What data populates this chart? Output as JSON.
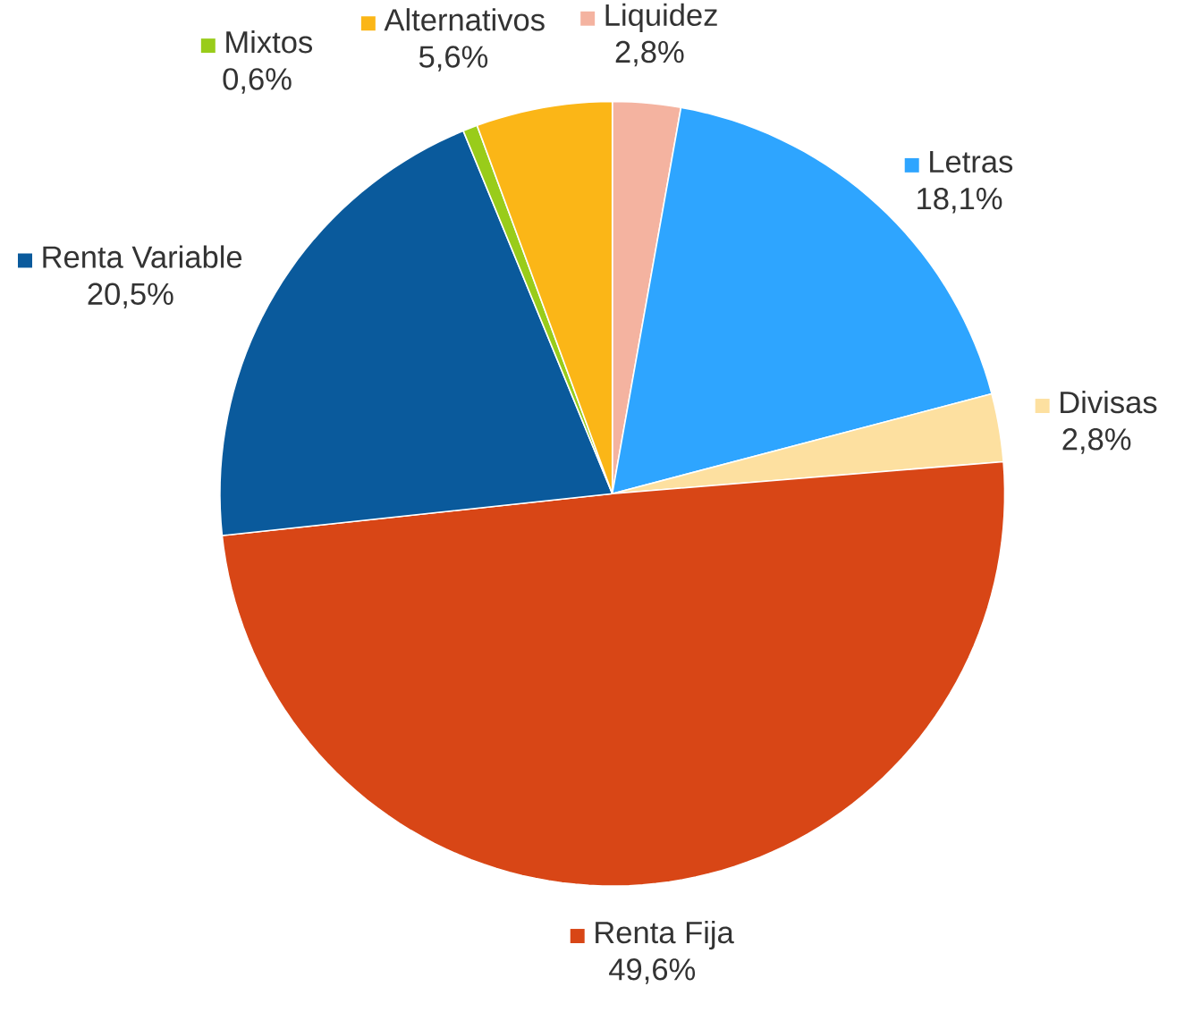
{
  "chart_data": {
    "type": "pie",
    "categories": [
      "Liquidez",
      "Letras",
      "Divisas",
      "Renta Fija",
      "Renta Variable",
      "Mixtos",
      "Alternativos"
    ],
    "values": [
      2.8,
      18.1,
      2.8,
      49.6,
      20.5,
      0.6,
      5.6
    ],
    "value_labels": [
      "2,8%",
      "18,1%",
      "2,8%",
      "49,6%",
      "20,5%",
      "0,6%",
      "5,6%"
    ],
    "legend": "top left",
    "colors": [
      "#f4b3a0",
      "#2ea5ff",
      "#fde0a0",
      "#d84616",
      "#0a5a9c",
      "#99cc1a",
      "#fbb617"
    ]
  }
}
